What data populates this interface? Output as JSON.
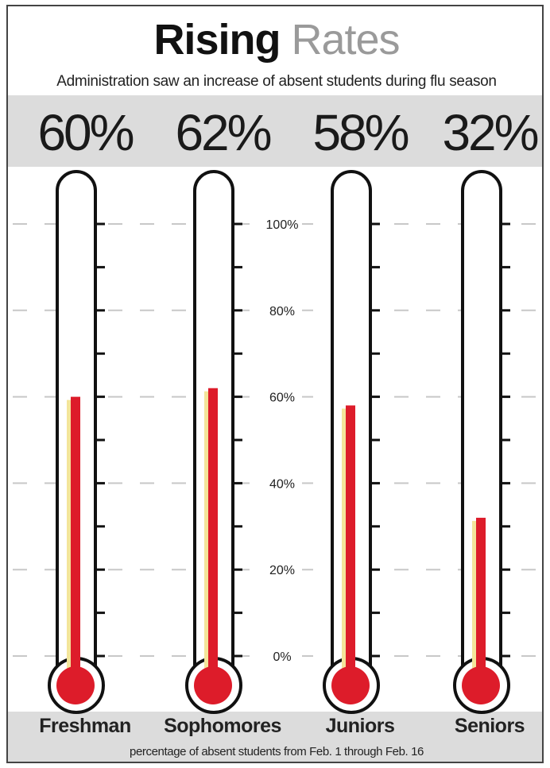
{
  "title_part1": "Rising",
  "title_part2": "Rates",
  "subtitle": "Administration saw an increase of absent students during flu season",
  "footnote": "percentage of absent students from Feb. 1 through Feb. 16",
  "colors": {
    "mercury": "#dd1c2a",
    "highlight": "#f3e59a",
    "band": "#dcdcdc",
    "outline": "#111111",
    "gridline": "#c8c8c8"
  },
  "chart_data": {
    "type": "bar",
    "title": "Rising Rates",
    "subtitle": "Administration saw an increase of absent students during flu season",
    "categories": [
      "Freshman",
      "Sophomores",
      "Juniors",
      "Seniors"
    ],
    "values": [
      60,
      62,
      58,
      32
    ],
    "value_labels": [
      "60%",
      "62%",
      "58%",
      "32%"
    ],
    "ylim": [
      0,
      100
    ],
    "yticks": [
      0,
      20,
      40,
      60,
      80,
      100
    ],
    "ytick_labels": [
      "0%",
      "20%",
      "40%",
      "60%",
      "80%",
      "100%"
    ],
    "xlabel": "percentage of absent students from Feb. 1 through Feb. 16",
    "ylabel": "",
    "grid": true,
    "style": "thermometer"
  }
}
